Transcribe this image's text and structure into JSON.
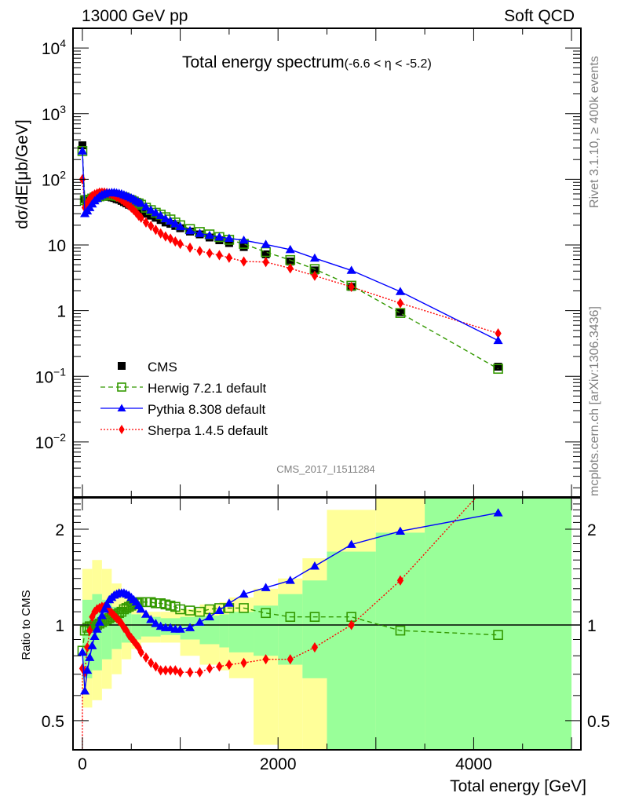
{
  "header": {
    "left": "13000 GeV pp",
    "right": "Soft QCD"
  },
  "side_labels": {
    "top": "Rivet 3.1.10, ≥ 400k events",
    "bottom": "mcplots.cern.ch [arXiv:1306.3436]"
  },
  "watermark": "CMS_2017_I1511284",
  "chart_data": [
    {
      "id": "main",
      "type": "scatter",
      "title": "Total energy spectrum",
      "title_suffix": "(-6.6 < η < -5.2)",
      "xlabel": "",
      "ylabel": "dσ/dE[μb/GeV]",
      "yscale": "log",
      "xlim": [
        -96,
        5096
      ],
      "ylim": [
        0.00145,
        20000
      ],
      "ytick_labels": [
        {
          "v": 10000,
          "base": "10",
          "exp": "4"
        },
        {
          "v": 1000,
          "base": "10",
          "exp": "3"
        },
        {
          "v": 100,
          "base": "10",
          "exp": "2"
        },
        {
          "v": 10,
          "base": "10",
          "exp": ""
        },
        {
          "v": 1,
          "base": "1",
          "exp": ""
        },
        {
          "v": 0.1,
          "base": "10",
          "exp": "−1"
        },
        {
          "v": 0.01,
          "base": "10",
          "exp": "−2"
        }
      ],
      "legend": {
        "position": "bottom-left",
        "entries": [
          {
            "name": "CMS",
            "key": "cms"
          },
          {
            "name": "Herwig 7.2.1 default",
            "key": "herwig"
          },
          {
            "name": "Pythia 8.308 default",
            "key": "pythia"
          },
          {
            "name": "Sherpa 1.4.5 default",
            "key": "sherpa"
          }
        ]
      },
      "x": [
        0,
        25,
        50,
        75,
        100,
        125,
        150,
        175,
        200,
        225,
        250,
        275,
        300,
        325,
        350,
        375,
        400,
        425,
        450,
        475,
        500,
        525,
        550,
        575,
        600,
        650,
        700,
        750,
        800,
        850,
        900,
        950,
        1000,
        1100,
        1200,
        1300,
        1400,
        1500,
        1650,
        1875,
        2125,
        2375,
        2750,
        3250,
        4250
      ],
      "series": [
        {
          "name": "CMS",
          "key": "cms",
          "color": "#000000",
          "values": [
            330,
            50,
            48,
            50,
            52,
            54,
            55,
            56,
            56,
            56,
            55,
            54,
            53,
            52,
            50,
            49,
            47,
            45,
            43,
            41,
            40,
            38,
            36,
            35,
            33,
            30,
            28,
            26,
            24,
            22,
            21,
            19.5,
            18,
            16,
            14.5,
            13,
            11.8,
            10.7,
            9.3,
            7.2,
            5.6,
            4.1,
            2.3,
            0.95,
            0.14
          ]
        },
        {
          "name": "Herwig 7.2.1 default",
          "key": "herwig",
          "color": "#339900",
          "values": [
            270,
            48,
            47,
            49,
            51,
            53,
            54,
            55,
            56,
            57,
            57,
            57,
            57,
            57,
            56,
            55,
            54,
            53,
            51,
            49,
            48,
            46,
            44,
            43,
            41,
            37,
            34,
            31,
            29,
            26.5,
            24.5,
            22,
            20,
            17.5,
            15.8,
            14.5,
            13.2,
            12,
            10.4,
            7.8,
            5.9,
            4.3,
            2.4,
            0.92,
            0.13
          ]
        },
        {
          "name": "Pythia 8.308 default",
          "key": "pythia",
          "color": "#0000ff",
          "values": [
            270,
            30,
            33,
            37,
            42,
            47,
            51,
            55,
            58,
            60,
            62,
            62,
            63,
            63,
            62,
            61,
            60,
            58,
            56,
            54,
            52,
            50,
            47,
            45,
            43,
            38,
            34,
            31,
            28,
            25,
            23,
            21,
            19,
            16.5,
            15,
            14,
            13.2,
            12.6,
            11.8,
            10.2,
            8.5,
            6.3,
            4.1,
            1.95,
            0.35
          ]
        },
        {
          "name": "Sherpa 1.4.5 default",
          "key": "sherpa",
          "color": "#ff0000",
          "values": [
            100,
            37,
            44,
            51,
            56,
            59,
            61,
            63,
            63,
            63,
            62,
            61,
            59,
            57,
            54,
            52,
            49,
            46,
            43,
            40,
            37,
            34,
            31,
            28,
            26,
            22,
            19.5,
            17,
            15,
            13.5,
            12.5,
            11.3,
            10.4,
            9.1,
            8.1,
            7.5,
            7,
            6.4,
            5.6,
            5.5,
            4.4,
            3.4,
            2.3,
            1.3,
            0.45
          ]
        }
      ]
    },
    {
      "id": "ratio",
      "type": "line",
      "xlabel": "Total energy [GeV]",
      "ylabel": "Ratio to CMS",
      "yscale": "log",
      "xlim": [
        -96,
        5096
      ],
      "ylim": [
        0.405,
        2.51
      ],
      "xtick_labels": [
        "0",
        "2000",
        "4000"
      ],
      "xtick_values": [
        0,
        2000,
        4000
      ],
      "ytick_labels": [
        "0.5",
        "1",
        "2"
      ],
      "ytick_values": [
        0.5,
        1,
        2
      ],
      "reference_line": 1,
      "band_bins": [
        {
          "lo": 0,
          "hi": 100,
          "inner": [
            0.68,
            1.2
          ],
          "outer": [
            0.55,
            1.5
          ]
        },
        {
          "lo": 100,
          "hi": 200,
          "inner": [
            0.72,
            1.25
          ],
          "outer": [
            0.58,
            1.6
          ]
        },
        {
          "lo": 200,
          "hi": 300,
          "inner": [
            0.78,
            1.2
          ],
          "outer": [
            0.63,
            1.5
          ]
        },
        {
          "lo": 300,
          "hi": 400,
          "inner": [
            0.84,
            1.14
          ],
          "outer": [
            0.7,
            1.35
          ]
        },
        {
          "lo": 400,
          "hi": 500,
          "inner": [
            0.88,
            1.1
          ],
          "outer": [
            0.78,
            1.22
          ]
        },
        {
          "lo": 500,
          "hi": 600,
          "inner": [
            0.9,
            1.08
          ],
          "outer": [
            0.84,
            1.14
          ]
        },
        {
          "lo": 600,
          "hi": 800,
          "inner": [
            0.92,
            1.06
          ],
          "outer": [
            0.88,
            1.1
          ]
        },
        {
          "lo": 800,
          "hi": 1000,
          "inner": [
            0.93,
            1.05
          ],
          "outer": [
            0.88,
            1.1
          ]
        },
        {
          "lo": 1000,
          "hi": 1200,
          "inner": [
            0.9,
            1.06
          ],
          "outer": [
            0.8,
            1.12
          ]
        },
        {
          "lo": 1200,
          "hi": 1400,
          "inner": [
            0.87,
            1.07
          ],
          "outer": [
            0.75,
            1.16
          ]
        },
        {
          "lo": 1400,
          "hi": 1500,
          "inner": [
            0.85,
            1.08
          ],
          "outer": [
            0.72,
            1.18
          ]
        },
        {
          "lo": 1500,
          "hi": 1750,
          "inner": [
            0.82,
            1.1
          ],
          "outer": [
            0.68,
            1.22
          ]
        },
        {
          "lo": 1750,
          "hi": 2000,
          "inner": [
            0.8,
            1.15
          ],
          "outer": [
            0.42,
            1.3
          ]
        },
        {
          "lo": 2000,
          "hi": 2250,
          "inner": [
            0.75,
            1.25
          ],
          "outer": [
            0.4,
            1.4
          ]
        },
        {
          "lo": 2250,
          "hi": 2500,
          "inner": [
            0.68,
            1.38
          ],
          "outer": [
            0.4,
            1.62
          ]
        },
        {
          "lo": 2500,
          "hi": 3000,
          "inner": [
            0.4,
            1.7
          ],
          "outer": [
            0.4,
            2.3
          ]
        },
        {
          "lo": 3000,
          "hi": 3500,
          "inner": [
            0.4,
            1.95
          ],
          "outer": [
            0.4,
            2.6
          ]
        },
        {
          "lo": 3500,
          "hi": 5000,
          "inner": [
            0.4,
            2.6
          ],
          "outer": [
            0.4,
            2.6
          ]
        }
      ],
      "x": [
        0,
        25,
        50,
        75,
        100,
        125,
        150,
        175,
        200,
        225,
        250,
        275,
        300,
        325,
        350,
        375,
        400,
        425,
        450,
        475,
        500,
        525,
        550,
        575,
        600,
        650,
        700,
        750,
        800,
        850,
        900,
        950,
        1000,
        1100,
        1200,
        1300,
        1400,
        1500,
        1650,
        1875,
        2125,
        2375,
        2750,
        3250,
        4250
      ],
      "series": [
        {
          "name": "Herwig 7.2.1 default",
          "key": "herwig",
          "color": "#339900",
          "values": [
            0.83,
            0.96,
            0.98,
            0.99,
            0.99,
            1.0,
            1.0,
            1.01,
            1.02,
            1.03,
            1.04,
            1.05,
            1.06,
            1.07,
            1.08,
            1.09,
            1.1,
            1.12,
            1.13,
            1.14,
            1.15,
            1.16,
            1.17,
            1.18,
            1.18,
            1.18,
            1.18,
            1.17,
            1.17,
            1.16,
            1.15,
            1.14,
            1.12,
            1.11,
            1.1,
            1.12,
            1.13,
            1.13,
            1.13,
            1.09,
            1.06,
            1.06,
            1.06,
            0.96,
            0.93
          ]
        },
        {
          "name": "Pythia 8.308 default",
          "key": "pythia",
          "color": "#0000ff",
          "values": [
            0.82,
            0.62,
            0.72,
            0.79,
            0.86,
            0.92,
            0.97,
            1.02,
            1.07,
            1.12,
            1.16,
            1.2,
            1.22,
            1.24,
            1.25,
            1.26,
            1.26,
            1.26,
            1.25,
            1.24,
            1.22,
            1.2,
            1.18,
            1.15,
            1.12,
            1.08,
            1.04,
            1.01,
            0.99,
            0.98,
            0.98,
            0.97,
            0.97,
            0.98,
            1.02,
            1.06,
            1.11,
            1.17,
            1.25,
            1.31,
            1.38,
            1.53,
            1.79,
            1.97,
            2.25
          ]
        },
        {
          "name": "Sherpa 1.4.5 default",
          "key": "sherpa",
          "color": "#ff0000",
          "values": [
            0.73,
            0.71,
            0.85,
            0.96,
            1.06,
            1.1,
            1.12,
            1.13,
            1.14,
            1.14,
            1.13,
            1.11,
            1.09,
            1.07,
            1.05,
            1.03,
            1.01,
            0.98,
            0.96,
            0.93,
            0.91,
            0.89,
            0.87,
            0.85,
            0.82,
            0.79,
            0.76,
            0.74,
            0.72,
            0.72,
            0.72,
            0.72,
            0.71,
            0.71,
            0.71,
            0.73,
            0.74,
            0.75,
            0.76,
            0.78,
            0.78,
            0.85,
            1.0,
            1.38,
            3.0
          ]
        }
      ]
    }
  ]
}
